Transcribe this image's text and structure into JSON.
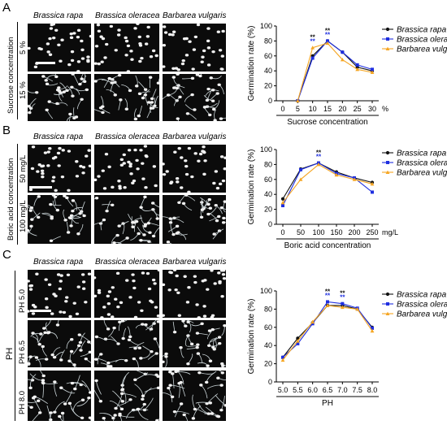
{
  "panels": {
    "A": {
      "letter": "A",
      "species": [
        "Brassica rapa",
        "Brassica oleracea",
        "Barbarea vulgaris"
      ],
      "group_label": "Sucrose concentration",
      "row_labels": [
        "5 %",
        "15 %"
      ]
    },
    "B": {
      "letter": "B",
      "species": [
        "Brassica rapa",
        "Brassica oleracea",
        "Barbarea vulgaris"
      ],
      "group_label": "Boric acid concentration",
      "row_labels": [
        "50 mg/L",
        "100 mg/L"
      ]
    },
    "C": {
      "letter": "C",
      "species": [
        "Brassica rapa",
        "Brassica oleracea",
        "Barbarea vulgaris"
      ],
      "group_label": "PH",
      "row_labels": [
        "PH 5.0",
        "PH 6.5",
        "PH 8.0"
      ]
    }
  },
  "colors": {
    "rapa": "#111111",
    "oleracea": "#1f2fe0",
    "vulgaris": "#f5a623"
  },
  "chart_data": [
    {
      "type": "line",
      "x": [
        0,
        5,
        10,
        15,
        20,
        25,
        30
      ],
      "xticks": [
        "0",
        "5",
        "10",
        "15",
        "20",
        "25",
        "30"
      ],
      "xunit": "%",
      "xlabel": "Sucrose concentration",
      "ylabel": "Germination rate (%)",
      "ylim": [
        0,
        100
      ],
      "yticks": [
        0,
        20,
        40,
        60,
        80,
        100
      ],
      "series": [
        {
          "name": "Brassica rapa",
          "values": [
            null,
            0,
            60,
            80,
            65,
            45,
            40
          ]
        },
        {
          "name": "Brassica oleracea",
          "values": [
            null,
            0,
            57,
            80,
            65,
            48,
            42
          ]
        },
        {
          "name": "Barbarea vulgaris",
          "values": [
            null,
            0,
            71,
            77,
            55,
            42,
            38
          ]
        }
      ],
      "annotations": [
        {
          "x": 10,
          "text": "**"
        },
        {
          "x": 15,
          "text": "**"
        }
      ]
    },
    {
      "type": "line",
      "x": [
        0,
        50,
        100,
        150,
        200,
        250
      ],
      "xticks": [
        "0",
        "50",
        "100",
        "150",
        "200",
        "250"
      ],
      "xunit": "mg/L",
      "xlabel": "Boric acid concentration",
      "ylabel": "Germination rate (%)",
      "ylim": [
        0,
        100
      ],
      "yticks": [
        0,
        20,
        40,
        60,
        80,
        100
      ],
      "series": [
        {
          "name": "Brassica rapa",
          "values": [
            34,
            74,
            82,
            70,
            62,
            56
          ]
        },
        {
          "name": "Brassica oleracea",
          "values": [
            25,
            73,
            82,
            68,
            62,
            43
          ]
        },
        {
          "name": "Barbarea vulgaris",
          "values": [
            29,
            60,
            80,
            66,
            60,
            54
          ]
        }
      ],
      "annotations": [
        {
          "x": 100,
          "text": "**"
        }
      ]
    },
    {
      "type": "line",
      "x": [
        5.0,
        5.5,
        6.0,
        6.5,
        7.0,
        7.5,
        8.0
      ],
      "xticks": [
        "5.0",
        "5.5",
        "6.0",
        "6.5",
        "7.0",
        "7.5",
        "8.0"
      ],
      "xunit": "",
      "xlabel": "PH",
      "ylabel": "Germination rate (%)",
      "ylim": [
        0,
        100
      ],
      "yticks": [
        0,
        20,
        40,
        60,
        80,
        100
      ],
      "series": [
        {
          "name": "Brassica rapa",
          "values": [
            27,
            48,
            65,
            84,
            84,
            80,
            60
          ]
        },
        {
          "name": "Brassica oleracea",
          "values": [
            27,
            42,
            64,
            88,
            86,
            81,
            59
          ]
        },
        {
          "name": "Barbarea vulgaris",
          "values": [
            24,
            45,
            66,
            84,
            82,
            80,
            56
          ]
        }
      ],
      "annotations": [
        {
          "x": 6.5,
          "text": "**"
        },
        {
          "x": 7.0,
          "text": "**"
        }
      ]
    }
  ]
}
